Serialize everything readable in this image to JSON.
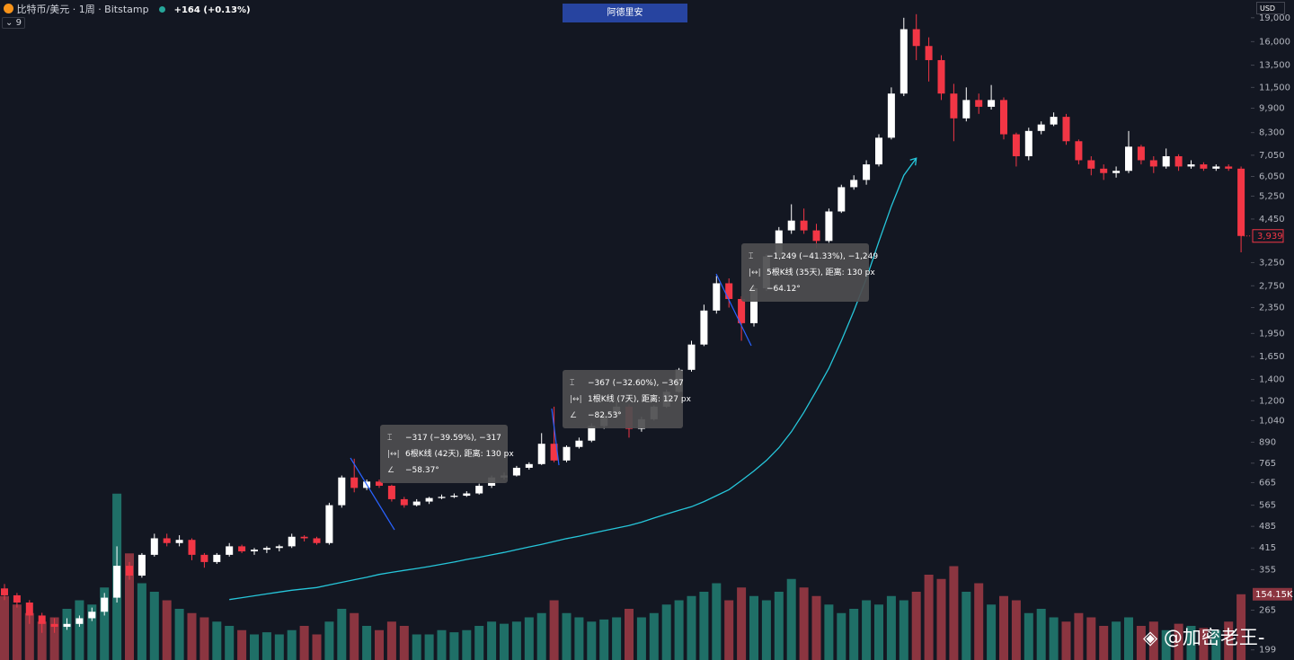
{
  "header": {
    "symbol": "比特币/美元 · 1周 · Bitstamp",
    "change": "+164 (+0.13%)",
    "indicator_count": "9",
    "button": "阿德里安",
    "currency": "USD"
  },
  "annotations": [
    [
      "−317 (−39.59%), −317",
      "6根K线 (42天), 距离: 130 px",
      "−58.37°"
    ],
    [
      "−367 (−32.60%), −367",
      "1根K线 (7天), 距离: 127 px",
      "−82.53°"
    ],
    [
      "−1,249 (−41.33%), −1,249",
      "5根K线 (35天), 距离: 130 px",
      "−64.12°"
    ]
  ],
  "watermark": "@加密老王-",
  "chart_data": {
    "type": "candlestick",
    "log_scale": true,
    "grid": false,
    "up_color": "#ffffff",
    "down_color": "#f23645",
    "volume_up_color": "#1f6f67",
    "volume_down_color": "#8b3540",
    "ylim": [
      185,
      21600
    ],
    "yticks": [
      199,
      265,
      355,
      415,
      485,
      565,
      665,
      765,
      890,
      {
        "value": 1040,
        "label": "1,040"
      },
      {
        "value": 1200,
        "label": "1,200"
      },
      {
        "value": 1400,
        "label": "1,400"
      },
      {
        "value": 1650,
        "label": "1,650"
      },
      {
        "value": 1950,
        "label": "1,950"
      },
      {
        "value": 2350,
        "label": "2,350"
      },
      {
        "value": 2750,
        "label": "2,750"
      },
      {
        "value": 3250,
        "label": "3,250"
      },
      {
        "value": 4450,
        "label": "4,450"
      },
      {
        "value": 5250,
        "label": "5,250"
      },
      {
        "value": 6050,
        "label": "6,050"
      },
      {
        "value": 7050,
        "label": "7,050"
      },
      {
        "value": 8300,
        "label": "8,300"
      },
      {
        "value": 9900,
        "label": "9,900"
      },
      {
        "value": 11500,
        "label": "11,500"
      },
      {
        "value": 13500,
        "label": "13,500"
      },
      {
        "value": 16000,
        "label": "16,000"
      },
      {
        "value": 19000,
        "label": "19,000"
      }
    ],
    "open": [
      310,
      295,
      280,
      255,
      240,
      235,
      240,
      250,
      262,
      290,
      365,
      340,
      395,
      445,
      430,
      440,
      395,
      375,
      395,
      420,
      405,
      410,
      415,
      420,
      450,
      445,
      430,
      565,
      690,
      640,
      670,
      650,
      590,
      565,
      580,
      595,
      600,
      605,
      615,
      650,
      690,
      700,
      740,
      760,
      880,
      780,
      860,
      900,
      1000,
      1080,
      1150,
      980,
      1050,
      1150,
      1280,
      1500,
      1800,
      2300,
      2800,
      2500,
      2100,
      2700,
      3400,
      4100,
      4400,
      4100,
      3800,
      4700,
      5600,
      5900,
      6600,
      8000,
      11000,
      17500,
      15500,
      14000,
      11000,
      9200,
      10500,
      10000,
      10500,
      8200,
      7000,
      8400,
      8800,
      9300,
      7800,
      6800,
      6400,
      6200,
      6300,
      7500,
      6800,
      6500,
      7000,
      6500,
      6600,
      6400,
      6500,
      6400
    ],
    "high": [
      320,
      300,
      285,
      260,
      250,
      250,
      255,
      270,
      300,
      420,
      375,
      400,
      460,
      460,
      455,
      445,
      400,
      400,
      430,
      425,
      415,
      420,
      425,
      460,
      455,
      450,
      575,
      700,
      790,
      680,
      680,
      655,
      600,
      590,
      600,
      610,
      615,
      625,
      660,
      700,
      715,
      750,
      770,
      950,
      1150,
      870,
      920,
      1020,
      1100,
      1200,
      1170,
      1070,
      1160,
      1300,
      1520,
      1850,
      2400,
      2950,
      2900,
      2550,
      2750,
      3450,
      4200,
      4950,
      4800,
      4300,
      4800,
      5700,
      6100,
      6800,
      8200,
      11500,
      19000,
      19500,
      16500,
      14500,
      11800,
      11500,
      11000,
      11700,
      10700,
      8300,
      8600,
      9000,
      9600,
      9500,
      7900,
      7000,
      6600,
      6500,
      8400,
      7600,
      7000,
      7400,
      7100,
      6800,
      6700,
      6600,
      6600,
      6500
    ],
    "low": [
      285,
      270,
      240,
      225,
      225,
      230,
      235,
      245,
      255,
      280,
      330,
      335,
      390,
      420,
      420,
      380,
      360,
      370,
      390,
      400,
      395,
      400,
      405,
      415,
      435,
      425,
      425,
      555,
      620,
      630,
      640,
      580,
      555,
      560,
      570,
      590,
      595,
      600,
      610,
      640,
      680,
      695,
      730,
      755,
      770,
      770,
      850,
      890,
      980,
      1060,
      920,
      960,
      1040,
      1140,
      1270,
      1480,
      1780,
      2250,
      2350,
      1850,
      2050,
      2650,
      3350,
      4000,
      4000,
      3600,
      3750,
      4650,
      5500,
      5700,
      6500,
      7900,
      10800,
      14000,
      12000,
      10500,
      7800,
      9000,
      9500,
      9800,
      7900,
      6500,
      6800,
      8200,
      8700,
      7600,
      6600,
      6100,
      5900,
      6000,
      6200,
      6600,
      6200,
      6400,
      6300,
      6400,
      6300,
      6300,
      6300,
      3500
    ],
    "close": [
      295,
      280,
      255,
      240,
      235,
      240,
      250,
      262,
      290,
      365,
      340,
      395,
      445,
      430,
      440,
      395,
      375,
      395,
      420,
      405,
      410,
      415,
      420,
      450,
      445,
      430,
      565,
      690,
      640,
      670,
      650,
      590,
      565,
      580,
      595,
      600,
      605,
      615,
      650,
      690,
      700,
      740,
      760,
      880,
      780,
      860,
      900,
      1000,
      1080,
      1150,
      980,
      1050,
      1150,
      1280,
      1500,
      1800,
      2300,
      2800,
      2500,
      2100,
      2700,
      3400,
      4100,
      4400,
      4100,
      3800,
      4700,
      5600,
      5900,
      6600,
      8000,
      11000,
      17500,
      15500,
      14000,
      11000,
      9200,
      10500,
      10000,
      10500,
      8200,
      7000,
      8400,
      8800,
      9300,
      7800,
      6800,
      6400,
      6200,
      6300,
      7500,
      6800,
      6500,
      7000,
      6500,
      6600,
      6400,
      6500,
      6400,
      3939
    ],
    "close_label": "3,939",
    "volume": [
      150,
      130,
      110,
      90,
      100,
      120,
      140,
      130,
      170,
      390,
      250,
      180,
      160,
      140,
      120,
      110,
      100,
      90,
      80,
      70,
      60,
      65,
      60,
      70,
      80,
      60,
      90,
      120,
      110,
      80,
      70,
      90,
      80,
      60,
      60,
      70,
      65,
      70,
      80,
      90,
      85,
      90,
      100,
      110,
      140,
      110,
      100,
      90,
      95,
      100,
      120,
      100,
      110,
      130,
      140,
      150,
      160,
      180,
      140,
      170,
      150,
      140,
      160,
      190,
      170,
      150,
      130,
      110,
      120,
      140,
      130,
      150,
      140,
      160,
      200,
      190,
      220,
      160,
      180,
      130,
      150,
      140,
      110,
      120,
      100,
      90,
      110,
      100,
      80,
      90,
      100,
      80,
      90,
      70,
      85,
      80,
      75,
      70,
      90,
      154.15
    ],
    "volume_label": "154.15K",
    "vlim": [
      0,
      400
    ],
    "moving_average": {
      "color": "#26c6da",
      "values": [
        null,
        null,
        null,
        null,
        null,
        null,
        null,
        null,
        null,
        null,
        null,
        null,
        null,
        null,
        null,
        null,
        null,
        null,
        286,
        290,
        294,
        298,
        302,
        306,
        309,
        312,
        318,
        324,
        330,
        336,
        343,
        348,
        353,
        358,
        363,
        369,
        375,
        382,
        388,
        395,
        402,
        410,
        418,
        426,
        435,
        444,
        452,
        461,
        470,
        479,
        488,
        500,
        515,
        530,
        545,
        559,
        580,
        605,
        632,
        675,
        723,
        780,
        855,
        960,
        1104,
        1290,
        1517,
        1850,
        2295,
        2900,
        3780,
        4880,
        6100,
        6900,
        null,
        null,
        null,
        null,
        null,
        null,
        null,
        null,
        null,
        null,
        null,
        null,
        null,
        null,
        null,
        null,
        null,
        null,
        null,
        null,
        null,
        null,
        null,
        null,
        null,
        null
      ]
    }
  }
}
